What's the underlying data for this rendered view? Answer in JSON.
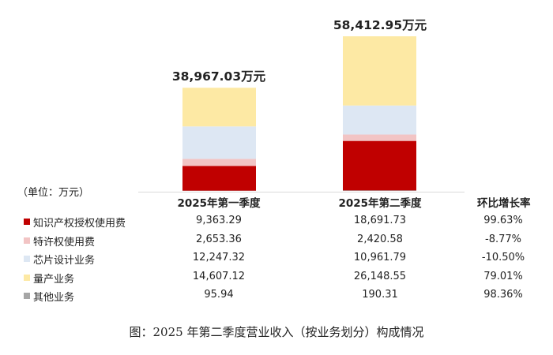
{
  "chart_data": {
    "type": "bar",
    "stacked": true,
    "unit_label": "（单位：万元）",
    "categories": [
      "2025年第一季度",
      "2025年第二季度"
    ],
    "totals": [
      "38,967.03万元",
      "58,412.95万元"
    ],
    "total_values": [
      38967.03,
      58412.95
    ],
    "growth_header": "环比增长率",
    "series": [
      {
        "name": "知识产权授权使用费",
        "values": [
          9363.29,
          18691.73
        ],
        "labels": [
          "9,363.29",
          "18,691.73"
        ],
        "growth": "99.63%",
        "color": "#c00000"
      },
      {
        "name": "特许权使用费",
        "values": [
          2653.36,
          2420.58
        ],
        "labels": [
          "2,653.36",
          "2,420.58"
        ],
        "growth": "-8.77%",
        "color": "#f2c4c4"
      },
      {
        "name": "芯片设计业务",
        "values": [
          12247.32,
          10961.79
        ],
        "labels": [
          "12,247.32",
          "10,961.79"
        ],
        "growth": "-10.50%",
        "color": "#dde7f3"
      },
      {
        "name": "量产业务",
        "values": [
          14607.12,
          26148.55
        ],
        "labels": [
          "14,607.12",
          "26,148.55"
        ],
        "growth": "79.01%",
        "color": "#fde9a4"
      },
      {
        "name": "其他业务",
        "values": [
          95.94,
          190.31
        ],
        "labels": [
          "95.94",
          "190.31"
        ],
        "growth": "98.36%",
        "color": "#a6a6a6"
      }
    ]
  },
  "caption": "图：2025 年第二季度营业收入（按业务划分）构成情况"
}
